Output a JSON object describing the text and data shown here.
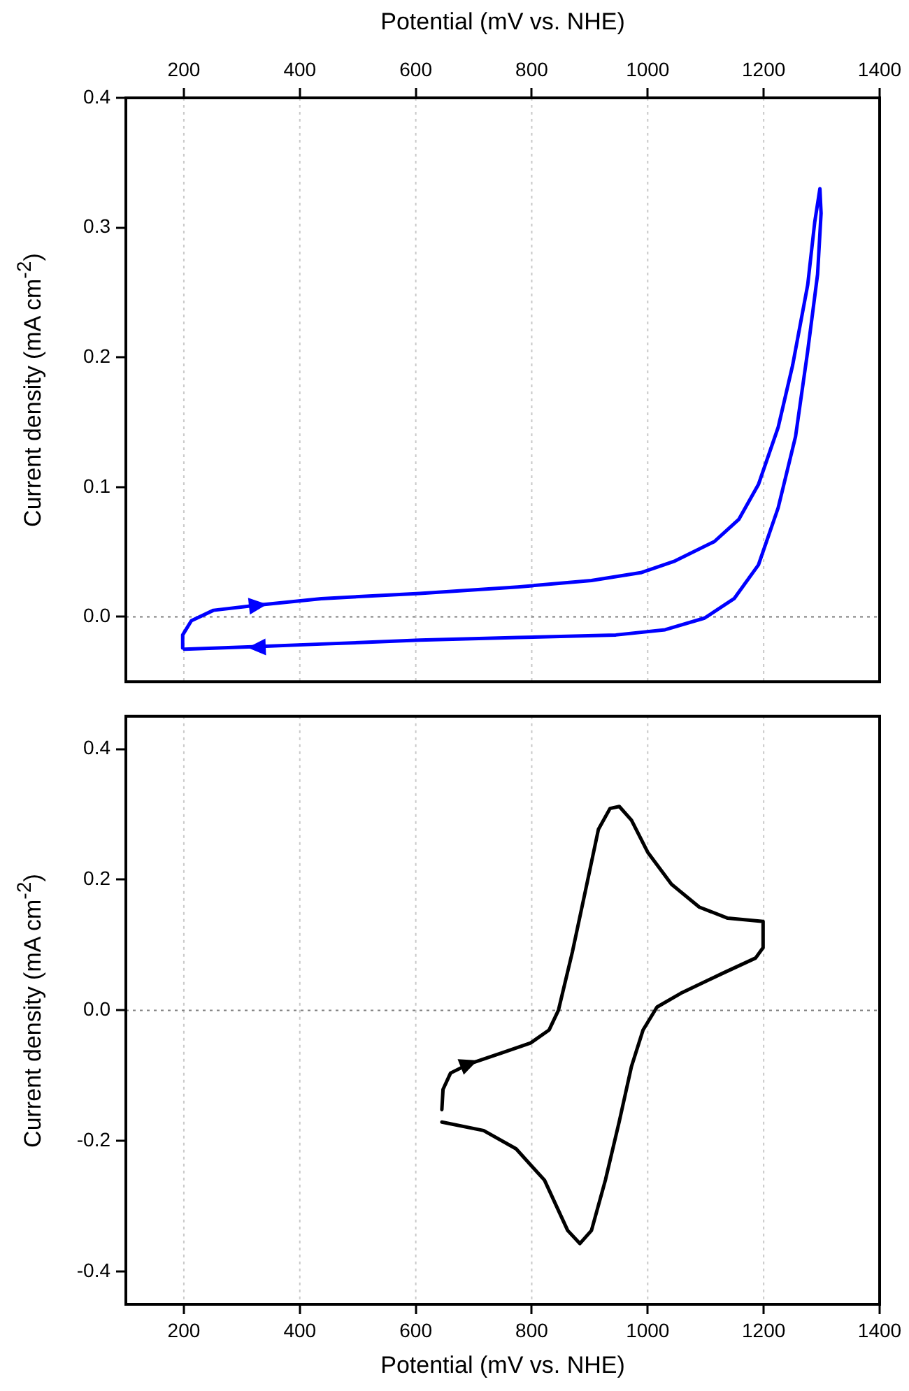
{
  "chart_data": [
    {
      "type": "line",
      "xlabel": "Potential (mV vs. NHE)",
      "ylabel": "Current density (mA cm$^{-2}$)",
      "xlim": [
        100,
        1400
      ],
      "xticks": [
        200,
        400,
        600,
        800,
        1000,
        1200,
        1400
      ],
      "ylim": [
        -0.05,
        0.4
      ],
      "yticks": [
        {
          "value": 0,
          "label": "0.0"
        },
        0.1,
        0.2,
        0.3,
        0.4
      ],
      "grid": "x",
      "marker": "none",
      "line_style": "solid",
      "legend": false,
      "ref_lines": [
        {
          "axis": "y",
          "value": 0,
          "line_style": "dotted",
          "color": "#808080"
        }
      ],
      "series": [
        {
          "color": "#0000ff",
          "x": [
            198,
            198,
            213,
            251,
            327,
            437,
            607,
            776,
            903,
            988,
            1047,
            1115,
            1157,
            1191,
            1225,
            1250,
            1276,
            1288,
            1297,
            1299,
            1293,
            1276,
            1255,
            1225,
            1191,
            1149,
            1098,
            1030,
            945,
            776,
            607,
            437,
            327,
            201
          ],
          "values": [
            -0.024,
            -0.014,
            -0.003,
            0.005,
            0.009,
            0.014,
            0.018,
            0.023,
            0.028,
            0.034,
            0.043,
            0.058,
            0.075,
            0.102,
            0.146,
            0.194,
            0.256,
            0.304,
            0.33,
            0.311,
            0.264,
            0.205,
            0.139,
            0.084,
            0.04,
            0.014,
            -0.001,
            -0.01,
            -0.014,
            -0.016,
            -0.018,
            -0.021,
            -0.023,
            -0.025
          ]
        }
      ]
    },
    {
      "type": "line",
      "xlabel": "Potential (mV vs. NHE)",
      "ylabel": "Current density (mA cm$^{-2}$)",
      "xlim": [
        100,
        1400
      ],
      "xticks": [
        200,
        400,
        600,
        800,
        1000,
        1200,
        1400
      ],
      "ylim": [
        -0.45,
        0.45
      ],
      "yticks": [
        -0.4,
        -0.2,
        {
          "value": 0,
          "label": "0.0"
        },
        0.2,
        0.4
      ],
      "grid": "x",
      "marker": "none",
      "line_style": "solid",
      "legend": false,
      "ref_lines": [
        {
          "axis": "y",
          "value": 0,
          "line_style": "dotted",
          "color": "#808080"
        }
      ],
      "series": [
        {
          "color": "#000000",
          "x": [
            645,
            647,
            660,
            692,
            749,
            798,
            830,
            846,
            870,
            895,
            915,
            935,
            951,
            972,
            1000,
            1041,
            1089,
            1138,
            1199,
            1199,
            1186,
            1130,
            1057,
            1016,
            992,
            972,
            951,
            927,
            903,
            883,
            862,
            822,
            773,
            717,
            645
          ],
          "values": [
            -0.152,
            -0.121,
            -0.096,
            -0.082,
            -0.065,
            -0.05,
            -0.03,
            0.0,
            0.089,
            0.193,
            0.277,
            0.309,
            0.312,
            0.291,
            0.242,
            0.193,
            0.158,
            0.141,
            0.136,
            0.096,
            0.08,
            0.057,
            0.026,
            0.005,
            -0.03,
            -0.086,
            -0.17,
            -0.26,
            -0.337,
            -0.357,
            -0.337,
            -0.26,
            -0.212,
            -0.184,
            -0.171
          ]
        }
      ]
    }
  ]
}
